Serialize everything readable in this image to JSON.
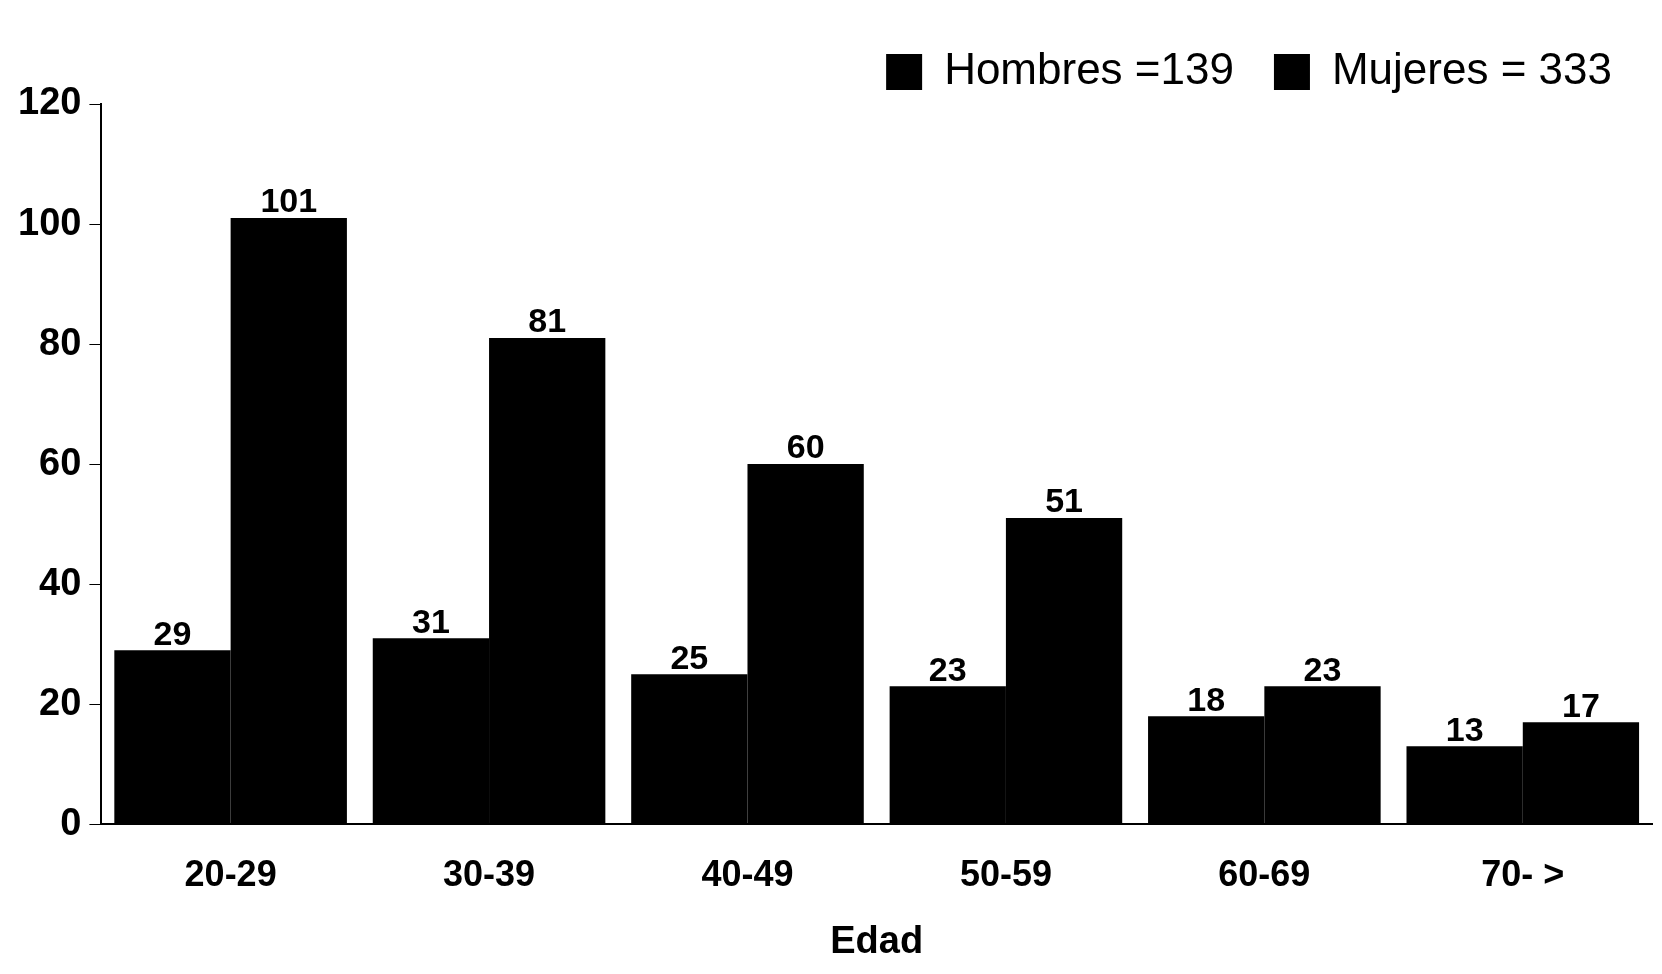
{
  "chart_data": {
    "type": "bar",
    "xlabel": "Edad",
    "categories": [
      "20-29",
      "30-39",
      "40-49",
      "50-59",
      "60-69",
      "70- >"
    ],
    "series": [
      {
        "name": "Hombres =139",
        "color": "#000000",
        "values": [
          29,
          31,
          25,
          23,
          18,
          13
        ]
      },
      {
        "name": "Mujeres = 333",
        "color": "#000000",
        "values": [
          101,
          81,
          60,
          51,
          23,
          17
        ]
      }
    ],
    "ylim": [
      0,
      120
    ],
    "yticks": [
      0,
      20,
      40,
      60,
      80,
      100,
      120
    ],
    "grid": false,
    "legend": "top right",
    "data_labels": true
  }
}
